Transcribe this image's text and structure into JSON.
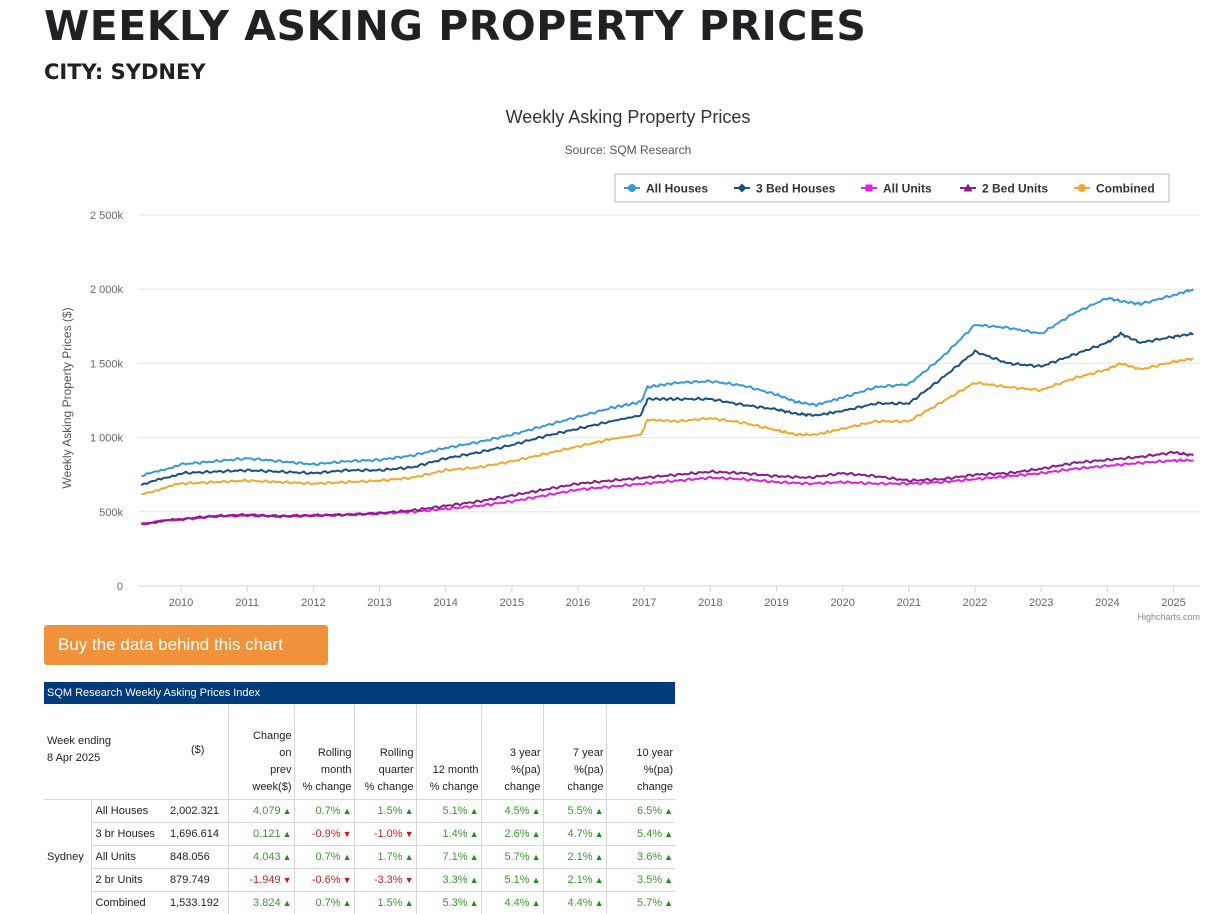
{
  "page": {
    "title": "WEEKLY ASKING PROPERTY PRICES",
    "subtitle": "CITY: SYDNEY",
    "buy_button": "Buy the data behind this chart"
  },
  "chart_data": {
    "type": "line",
    "title": "Weekly Asking Property Prices",
    "subtitle": "Source: SQM Research",
    "ylabel": "Weekly Asking Property Prices ($)",
    "xlabel": "",
    "ylim": [
      0,
      2500000
    ],
    "yticks": [
      0,
      500000,
      1000000,
      1500000,
      2000000,
      2500000
    ],
    "ytick_labels": [
      "0",
      "500k",
      "1 000k",
      "1 500k",
      "2 000k",
      "2 500k"
    ],
    "xlim": [
      2009.35,
      2025.4
    ],
    "xticks": [
      "2010",
      "2011",
      "2012",
      "2013",
      "2014",
      "2015",
      "2016",
      "2017",
      "2018",
      "2019",
      "2020",
      "2021",
      "2022",
      "2023",
      "2024",
      "2025"
    ],
    "grid": true,
    "legend_position": "top-right",
    "credit": "Highcharts.com",
    "series": [
      {
        "name": "All Houses",
        "color": "#3b97d8",
        "marker": "circle",
        "x": [
          2009.4,
          2010,
          2010.5,
          2011,
          2011.5,
          2012,
          2012.5,
          2013,
          2013.5,
          2014,
          2014.5,
          2015,
          2015.5,
          2016,
          2016.5,
          2016.95,
          2017.05,
          2017.5,
          2018,
          2018.5,
          2019,
          2019.3,
          2019.6,
          2020,
          2020.5,
          2021,
          2021.5,
          2022,
          2022.5,
          2023,
          2023.5,
          2024,
          2024.2,
          2024.5,
          2025,
          2025.3
        ],
        "y": [
          740000,
          820000,
          840000,
          860000,
          840000,
          820000,
          840000,
          850000,
          880000,
          930000,
          970000,
          1020000,
          1080000,
          1140000,
          1200000,
          1240000,
          1340000,
          1370000,
          1380000,
          1350000,
          1290000,
          1240000,
          1220000,
          1270000,
          1340000,
          1360000,
          1540000,
          1760000,
          1740000,
          1700000,
          1840000,
          1940000,
          1920000,
          1900000,
          1960000,
          2000000
        ]
      },
      {
        "name": "3 Bed Houses",
        "color": "#1b4f7e",
        "marker": "diamond",
        "x": [
          2009.4,
          2010,
          2010.5,
          2011,
          2011.5,
          2012,
          2012.5,
          2013,
          2013.5,
          2014,
          2014.5,
          2015,
          2015.5,
          2016,
          2016.5,
          2016.95,
          2017.05,
          2017.5,
          2018,
          2018.5,
          2019,
          2019.3,
          2019.6,
          2020,
          2020.5,
          2021,
          2021.5,
          2022,
          2022.5,
          2023,
          2023.5,
          2024,
          2024.2,
          2024.5,
          2025,
          2025.3
        ],
        "y": [
          680000,
          760000,
          770000,
          780000,
          770000,
          760000,
          780000,
          780000,
          800000,
          860000,
          900000,
          950000,
          1010000,
          1060000,
          1110000,
          1150000,
          1260000,
          1260000,
          1260000,
          1220000,
          1190000,
          1160000,
          1150000,
          1180000,
          1230000,
          1230000,
          1400000,
          1580000,
          1500000,
          1480000,
          1560000,
          1640000,
          1700000,
          1640000,
          1680000,
          1700000
        ]
      },
      {
        "name": "All Units",
        "color": "#e020e0",
        "marker": "square",
        "x": [
          2009.4,
          2010,
          2010.5,
          2011,
          2011.5,
          2012,
          2012.5,
          2013,
          2013.5,
          2014,
          2014.5,
          2015,
          2015.5,
          2016,
          2016.5,
          2017,
          2017.5,
          2018,
          2018.5,
          2019,
          2019.5,
          2020,
          2020.5,
          2021,
          2021.5,
          2022,
          2022.5,
          2023,
          2023.5,
          2024,
          2024.5,
          2025,
          2025.3
        ],
        "y": [
          420000,
          450000,
          470000,
          475000,
          470000,
          475000,
          480000,
          490000,
          500000,
          520000,
          540000,
          570000,
          610000,
          650000,
          670000,
          690000,
          710000,
          730000,
          720000,
          700000,
          690000,
          700000,
          690000,
          690000,
          700000,
          720000,
          740000,
          760000,
          790000,
          810000,
          830000,
          845000,
          848000
        ]
      },
      {
        "name": "2 Bed Units",
        "color": "#8b1a8b",
        "marker": "triangle",
        "x": [
          2009.4,
          2010,
          2010.5,
          2011,
          2011.5,
          2012,
          2012.5,
          2013,
          2013.5,
          2014,
          2014.5,
          2015,
          2015.5,
          2016,
          2016.5,
          2017,
          2017.5,
          2018,
          2018.5,
          2019,
          2019.5,
          2020,
          2020.5,
          2021,
          2021.5,
          2022,
          2022.5,
          2023,
          2023.5,
          2024,
          2024.5,
          2025,
          2025.3
        ],
        "y": [
          420000,
          450000,
          470000,
          480000,
          470000,
          475000,
          480000,
          490000,
          510000,
          540000,
          570000,
          610000,
          650000,
          690000,
          710000,
          730000,
          750000,
          770000,
          760000,
          740000,
          730000,
          760000,
          740000,
          710000,
          720000,
          750000,
          760000,
          790000,
          830000,
          850000,
          870000,
          900000,
          880000
        ]
      },
      {
        "name": "Combined",
        "color": "#f0a830",
        "marker": "circle",
        "x": [
          2009.4,
          2010,
          2010.5,
          2011,
          2011.5,
          2012,
          2012.5,
          2013,
          2013.5,
          2014,
          2014.5,
          2015,
          2015.5,
          2016,
          2016.5,
          2016.95,
          2017.05,
          2017.5,
          2018,
          2018.5,
          2019,
          2019.3,
          2019.6,
          2020,
          2020.5,
          2021,
          2021.5,
          2022,
          2022.5,
          2023,
          2023.5,
          2024,
          2024.2,
          2024.5,
          2025,
          2025.3
        ],
        "y": [
          620000,
          690000,
          700000,
          710000,
          700000,
          690000,
          700000,
          710000,
          730000,
          780000,
          800000,
          840000,
          890000,
          940000,
          990000,
          1020000,
          1120000,
          1110000,
          1130000,
          1100000,
          1050000,
          1020000,
          1020000,
          1060000,
          1110000,
          1110000,
          1240000,
          1370000,
          1340000,
          1320000,
          1400000,
          1460000,
          1500000,
          1460000,
          1510000,
          1533000
        ]
      }
    ]
  },
  "table": {
    "caption": "SQM Research Weekly Asking Prices Index",
    "headers": {
      "week": [
        "Week ending",
        "8 Apr 2025"
      ],
      "price": "($)",
      "change": [
        "Change",
        "on",
        "prev",
        "week($)"
      ],
      "rolling_month": [
        "Rolling",
        "month",
        "% change"
      ],
      "rolling_quarter": [
        "Rolling",
        "quarter",
        "% change"
      ],
      "twelve_month": [
        "12 month",
        "% change"
      ],
      "three_year": [
        "3 year",
        "%(pa)",
        "change"
      ],
      "seven_year": [
        "7 year",
        "%(pa)",
        "change"
      ],
      "ten_year": [
        "10 year",
        "%(pa)",
        "change"
      ]
    },
    "city": "Sydney",
    "rows": [
      {
        "type": "All Houses",
        "price": "2,002.321",
        "change": "4.079",
        "month": "0.7%",
        "quarter": "1.5%",
        "year12": "5.1%",
        "year3": "4.5%",
        "year7": "5.5%",
        "year10": "6.5%",
        "dir": [
          "up",
          "up",
          "up",
          "up",
          "up",
          "up",
          "up"
        ]
      },
      {
        "type": "3 br Houses",
        "price": "1,696.614",
        "change": "0.121",
        "month": "-0.9%",
        "quarter": "-1.0%",
        "year12": "1.4%",
        "year3": "2.6%",
        "year7": "4.7%",
        "year10": "5.4%",
        "dir": [
          "up",
          "down",
          "down",
          "up",
          "up",
          "up",
          "up"
        ]
      },
      {
        "type": "All Units",
        "price": "848.056",
        "change": "4.043",
        "month": "0.7%",
        "quarter": "1.7%",
        "year12": "7.1%",
        "year3": "5.7%",
        "year7": "2.1%",
        "year10": "3.6%",
        "dir": [
          "up",
          "up",
          "up",
          "up",
          "up",
          "up",
          "up"
        ]
      },
      {
        "type": "2 br Units",
        "price": "879.749",
        "change": "-1.949",
        "month": "-0.6%",
        "quarter": "-3.3%",
        "year12": "3.3%",
        "year3": "5.1%",
        "year7": "2.1%",
        "year10": "3.5%",
        "dir": [
          "down",
          "down",
          "down",
          "up",
          "up",
          "up",
          "up"
        ]
      },
      {
        "type": "Combined",
        "price": "1,533.192",
        "change": "3.824",
        "month": "0.7%",
        "quarter": "1.5%",
        "year12": "5.3%",
        "year3": "4.4%",
        "year7": "4.4%",
        "year10": "5.7%",
        "dir": [
          "up",
          "up",
          "up",
          "up",
          "up",
          "up",
          "up"
        ]
      }
    ]
  }
}
